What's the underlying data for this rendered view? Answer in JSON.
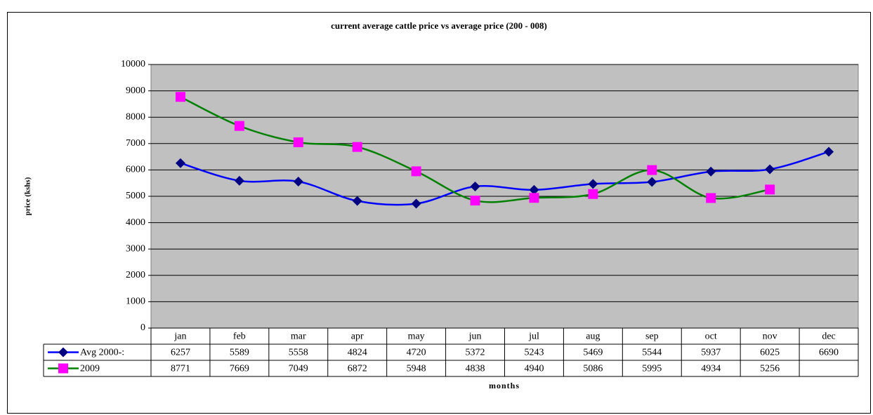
{
  "chart_data": {
    "type": "line",
    "title": "current average cattle price vs average price (200 - 008)",
    "x_label": "months",
    "y_label": "price (kshs)",
    "categories": [
      "jan",
      "feb",
      "mar",
      "apr",
      "may",
      "jun",
      "jul",
      "aug",
      "sep",
      "oct",
      "nov",
      "dec"
    ],
    "series": [
      {
        "name": "Avg 2000-:",
        "color": "#0000ff",
        "marker_color": "#000080",
        "marker": "diamond",
        "values": [
          6257,
          5589,
          5558,
          4824,
          4720,
          5372,
          5243,
          5469,
          5544,
          5937,
          6025,
          6690
        ]
      },
      {
        "name": "2009",
        "color": "#008000",
        "marker_color": "#ff00ff",
        "marker": "square",
        "values": [
          8771,
          7669,
          7049,
          6872,
          5948,
          4838,
          4940,
          5086,
          5995,
          4934,
          5256,
          null
        ]
      }
    ],
    "ylim": [
      0,
      10000
    ],
    "yticks": [
      0,
      1000,
      2000,
      3000,
      4000,
      5000,
      6000,
      7000,
      8000,
      9000,
      10000
    ],
    "grid": true,
    "smooth": true,
    "plot_background": "#c0c0c0"
  }
}
